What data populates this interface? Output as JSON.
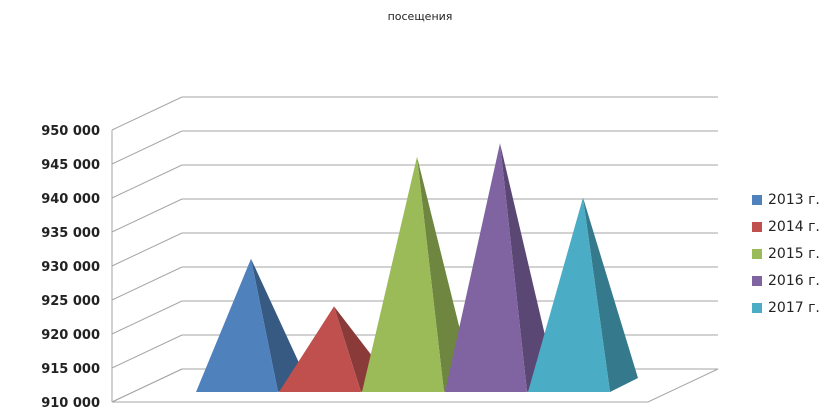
{
  "chart_data": {
    "type": "bar",
    "title": "посещения",
    "categories": [
      "2013 г.",
      "2014 г.",
      "2015 г.",
      "2016 г.",
      "2017 г."
    ],
    "values": [
      929000,
      922000,
      944000,
      946000,
      938000
    ],
    "ylim": [
      910000,
      950000
    ],
    "yticks": [
      "910 000",
      "915 000",
      "920 000",
      "925 000",
      "930 000",
      "935 000",
      "940 000",
      "945 000",
      "950 000"
    ],
    "ytick_values": [
      910000,
      915000,
      920000,
      925000,
      930000,
      935000,
      940000,
      945000,
      950000
    ],
    "grid": true,
    "legend_position": "right",
    "colors": [
      "#4F81BD",
      "#C0504D",
      "#9BBB59",
      "#8064A2",
      "#4BACC6"
    ],
    "dark_colors": [
      "#375A83",
      "#8A3A38",
      "#6E8640",
      "#5B4774",
      "#357A8C"
    ]
  }
}
